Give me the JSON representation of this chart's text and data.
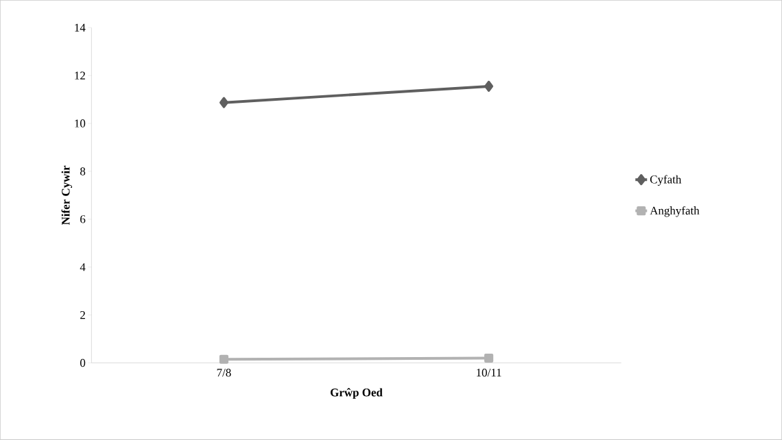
{
  "chart_data": {
    "type": "line",
    "xlabel": "Grŵp Oed",
    "ylabel": "Nifer Cywir",
    "categories": [
      "7/8",
      "10/11"
    ],
    "series": [
      {
        "name": "Cyfath",
        "color": "#5f5f5f",
        "marker": "diamond",
        "values": [
          10.87,
          11.55
        ]
      },
      {
        "name": "Anghyfath",
        "color": "#b2b2b2",
        "marker": "square",
        "values": [
          0.15,
          0.2
        ]
      }
    ],
    "ylim": [
      0,
      14
    ],
    "yticks": [
      0,
      2,
      4,
      6,
      8,
      10,
      12,
      14
    ],
    "grid": false,
    "legend": "right"
  }
}
